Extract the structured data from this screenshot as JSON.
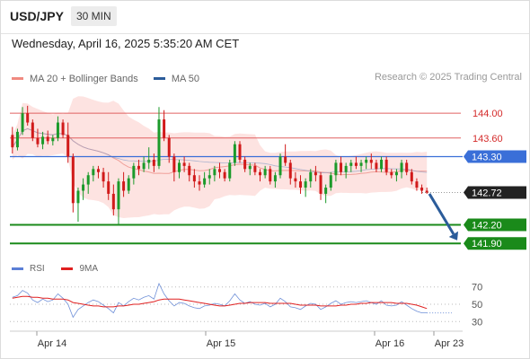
{
  "header": {
    "symbol": "USD/JPY",
    "timeframe": "30 MIN"
  },
  "timestamp": "Wednesday, April 16, 2025 5:35:20 AM CET",
  "legend": [
    {
      "label": "MA 20 + Bollinger Bands",
      "color": "#f08a80"
    },
    {
      "label": "MA 50",
      "color": "#2b5c9a"
    }
  ],
  "credit": "Research © 2025 Trading Central",
  "rsi_legend": [
    {
      "label": "RSI",
      "color": "#5b7fd6"
    },
    {
      "label": "9MA",
      "color": "#e02020"
    }
  ],
  "colors": {
    "up": "#1b9a2a",
    "down": "#d11a1a",
    "resistance": "#e06060",
    "pivot": "#3a6fd8",
    "support": "#1a8a1a",
    "current": "#222222",
    "band_fill": "#fde3e1",
    "ma20": "#f0a09a",
    "ma50": "#8a9fc8",
    "rsi": "#6f90d8",
    "rsi_ma": "#e02020",
    "forecast": "#2b5c9a"
  },
  "chart_data": [
    {
      "type": "candlestick",
      "title": "",
      "x_ticks": [
        "Apr 14",
        "Apr 15",
        "Apr 16",
        "Apr 23"
      ],
      "ylim": [
        141.7,
        144.35
      ],
      "levels": [
        {
          "label": "144.00",
          "value": 144.0,
          "kind": "resistance"
        },
        {
          "label": "143.60",
          "value": 143.6,
          "kind": "resistance"
        },
        {
          "label": "143.30",
          "value": 143.3,
          "kind": "pivot"
        },
        {
          "label": "142.72",
          "value": 142.72,
          "kind": "current"
        },
        {
          "label": "142.20",
          "value": 142.2,
          "kind": "support"
        },
        {
          "label": "141.90",
          "value": 141.9,
          "kind": "support"
        }
      ],
      "forecast": {
        "from": 142.7,
        "to": 141.95
      },
      "candles": [
        [
          143.65,
          143.78,
          143.35,
          143.45
        ],
        [
          143.45,
          143.75,
          143.4,
          143.7
        ],
        [
          143.7,
          144.1,
          143.65,
          144.0
        ],
        [
          144.0,
          144.12,
          143.8,
          143.85
        ],
        [
          143.85,
          143.9,
          143.55,
          143.6
        ],
        [
          143.6,
          143.75,
          143.45,
          143.5
        ],
        [
          143.5,
          143.7,
          143.42,
          143.62
        ],
        [
          143.62,
          143.72,
          143.5,
          143.55
        ],
        [
          143.55,
          143.65,
          143.48,
          143.6
        ],
        [
          143.6,
          143.95,
          143.55,
          143.85
        ],
        [
          143.85,
          143.9,
          143.6,
          143.65
        ],
        [
          143.65,
          143.85,
          143.2,
          143.3
        ],
        [
          143.3,
          143.35,
          142.4,
          142.55
        ],
        [
          142.55,
          142.8,
          142.25,
          142.75
        ],
        [
          142.75,
          142.95,
          142.6,
          142.85
        ],
        [
          142.85,
          143.05,
          142.7,
          143.0
        ],
        [
          143.0,
          143.15,
          142.9,
          143.1
        ],
        [
          143.1,
          143.15,
          142.95,
          143.05
        ],
        [
          143.05,
          143.12,
          142.8,
          142.9
        ],
        [
          142.9,
          143.05,
          142.6,
          142.7
        ],
        [
          142.7,
          142.85,
          142.35,
          142.45
        ],
        [
          142.45,
          142.95,
          142.2,
          142.9
        ],
        [
          142.9,
          143.05,
          142.65,
          142.75
        ],
        [
          142.75,
          143.0,
          142.7,
          142.95
        ],
        [
          142.95,
          143.2,
          142.85,
          143.15
        ],
        [
          143.15,
          143.25,
          143.0,
          143.1
        ],
        [
          143.1,
          143.3,
          143.05,
          143.2
        ],
        [
          143.2,
          143.45,
          143.1,
          143.25
        ],
        [
          143.25,
          143.35,
          143.05,
          143.15
        ],
        [
          143.15,
          144.1,
          143.1,
          143.9
        ],
        [
          143.9,
          144.05,
          143.55,
          143.6
        ],
        [
          143.6,
          143.65,
          143.2,
          143.3
        ],
        [
          143.3,
          143.35,
          142.9,
          143.05
        ],
        [
          143.05,
          143.25,
          142.95,
          143.2
        ],
        [
          143.2,
          143.3,
          143.05,
          143.15
        ],
        [
          143.15,
          143.2,
          142.9,
          143.0
        ],
        [
          143.0,
          143.1,
          142.8,
          142.9
        ],
        [
          142.9,
          143.0,
          142.75,
          142.85
        ],
        [
          142.85,
          143.05,
          142.8,
          142.95
        ],
        [
          142.95,
          143.1,
          142.85,
          143.0
        ],
        [
          143.0,
          143.15,
          142.9,
          143.1
        ],
        [
          143.1,
          143.2,
          142.95,
          143.05
        ],
        [
          143.05,
          143.1,
          142.9,
          142.95
        ],
        [
          142.95,
          143.25,
          142.9,
          143.2
        ],
        [
          143.2,
          143.55,
          143.15,
          143.5
        ],
        [
          143.5,
          143.55,
          143.2,
          143.25
        ],
        [
          143.25,
          143.3,
          143.05,
          143.1
        ],
        [
          143.1,
          143.2,
          143.0,
          143.15
        ],
        [
          143.15,
          143.2,
          143.0,
          143.05
        ],
        [
          143.05,
          143.1,
          142.9,
          143.0
        ],
        [
          143.0,
          143.15,
          142.95,
          143.1
        ],
        [
          143.1,
          143.15,
          142.85,
          142.9
        ],
        [
          142.9,
          143.05,
          142.8,
          143.0
        ],
        [
          143.0,
          143.35,
          142.95,
          143.3
        ],
        [
          143.3,
          143.5,
          143.15,
          143.2
        ],
        [
          143.2,
          143.25,
          142.85,
          142.95
        ],
        [
          142.95,
          143.05,
          142.8,
          142.9
        ],
        [
          142.9,
          143.0,
          142.7,
          142.8
        ],
        [
          142.8,
          142.95,
          142.65,
          142.9
        ],
        [
          142.9,
          143.1,
          142.8,
          143.05
        ],
        [
          143.05,
          143.15,
          142.9,
          143.0
        ],
        [
          143.0,
          143.05,
          142.6,
          142.7
        ],
        [
          142.7,
          142.85,
          142.55,
          142.8
        ],
        [
          142.8,
          143.05,
          142.75,
          143.0
        ],
        [
          143.0,
          143.25,
          142.9,
          143.2
        ],
        [
          143.2,
          143.3,
          143.0,
          143.05
        ],
        [
          143.05,
          143.2,
          142.95,
          143.15
        ],
        [
          143.15,
          143.25,
          143.05,
          143.2
        ],
        [
          143.2,
          143.3,
          143.1,
          143.15
        ],
        [
          143.15,
          143.25,
          143.05,
          143.2
        ],
        [
          143.2,
          143.3,
          143.1,
          143.25
        ],
        [
          143.25,
          143.35,
          143.1,
          143.2
        ],
        [
          143.2,
          143.25,
          143.05,
          143.1
        ],
        [
          143.1,
          143.3,
          143.05,
          143.25
        ],
        [
          143.25,
          143.3,
          143.0,
          143.05
        ],
        [
          143.05,
          143.1,
          142.95,
          143.0
        ],
        [
          143.0,
          143.1,
          142.9,
          143.05
        ],
        [
          143.05,
          143.25,
          142.95,
          143.2
        ],
        [
          143.2,
          143.25,
          143.0,
          143.05
        ],
        [
          143.05,
          143.1,
          142.85,
          142.9
        ],
        [
          142.9,
          142.95,
          142.75,
          142.8
        ],
        [
          142.8,
          142.85,
          142.7,
          142.75
        ],
        [
          142.75,
          142.8,
          142.7,
          142.72
        ]
      ]
    },
    {
      "type": "line",
      "title": "",
      "y_ticks": [
        "70",
        "50",
        "30"
      ],
      "ylim": [
        22,
        78
      ],
      "series": [
        {
          "name": "RSI",
          "values": [
            58,
            60,
            66,
            63,
            55,
            52,
            56,
            53,
            55,
            62,
            57,
            50,
            35,
            44,
            48,
            52,
            55,
            53,
            49,
            45,
            40,
            52,
            48,
            53,
            57,
            55,
            58,
            60,
            56,
            74,
            62,
            54,
            48,
            52,
            51,
            48,
            46,
            45,
            48,
            49,
            51,
            50,
            48,
            54,
            62,
            55,
            51,
            53,
            50,
            49,
            51,
            47,
            50,
            57,
            53,
            47,
            46,
            44,
            48,
            51,
            50,
            44,
            47,
            51,
            54,
            50,
            52,
            53,
            52,
            53,
            54,
            52,
            50,
            54,
            49,
            48,
            49,
            53,
            49,
            45,
            42,
            40,
            40
          ]
        },
        {
          "name": "9MA",
          "values": [
            57,
            58,
            59,
            59,
            58,
            58,
            57,
            57,
            56,
            56,
            56,
            55,
            52,
            51,
            50,
            49,
            48,
            48,
            47,
            47,
            47,
            48,
            48,
            49,
            50,
            50,
            51,
            52,
            53,
            55,
            56,
            56,
            56,
            56,
            55,
            54,
            53,
            52,
            51,
            50,
            49,
            48,
            48,
            49,
            50,
            51,
            51,
            52,
            52,
            52,
            52,
            51,
            51,
            51,
            51,
            51,
            50,
            49,
            49,
            49,
            49,
            48,
            48,
            48,
            48,
            49,
            49,
            50,
            50,
            51,
            51,
            52,
            52,
            52,
            52,
            52,
            51,
            51,
            51,
            50,
            49,
            47,
            45
          ]
        }
      ]
    }
  ]
}
